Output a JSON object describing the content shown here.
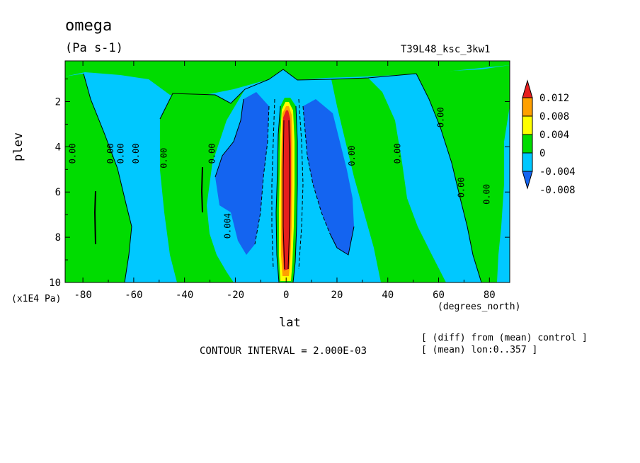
{
  "chart_data": {
    "type": "heatmap",
    "title": "omega",
    "units": "(Pa s-1)",
    "run_label": "T39L48_ksc_3kw1",
    "xlabel": "lat",
    "x_units": "(degrees_north)",
    "ylabel": "plev",
    "y_units": "(x1E4 Pa)",
    "x_ticks": [
      "-80",
      "-60",
      "-40",
      "-20",
      "0",
      "20",
      "40",
      "60",
      "80"
    ],
    "x_tick_values": [
      -80,
      -60,
      -40,
      -20,
      0,
      20,
      40,
      60,
      80
    ],
    "y_ticks": [
      "2",
      "4",
      "6",
      "8",
      "10"
    ],
    "y_tick_values": [
      2,
      4,
      6,
      8,
      10
    ],
    "xlim": [
      -87,
      88
    ],
    "ylim": [
      10,
      0.2
    ],
    "legend": {
      "labels": [
        "0.012",
        "0.008",
        "0.004",
        "0",
        "-0.004",
        "-0.008"
      ],
      "colors": [
        "#1464f0",
        "#00c8ff",
        "#00dc00",
        "#ffff00",
        "#ffa000",
        "#e61e1e"
      ]
    },
    "contour_labels": [
      {
        "text": "0.00",
        "x": -83,
        "y": 4.3
      },
      {
        "text": "0.00",
        "x": -68,
        "y": 4.3
      },
      {
        "text": "0.00",
        "x": -64,
        "y": 4.3
      },
      {
        "text": "0.00",
        "x": -58,
        "y": 4.3
      },
      {
        "text": "0.00",
        "x": -47,
        "y": 4.5
      },
      {
        "text": "0.00",
        "x": -28,
        "y": 4.3
      },
      {
        "text": "0.004",
        "x": -22,
        "y": 7.5
      },
      {
        "text": "0.00",
        "x": 27,
        "y": 4.4
      },
      {
        "text": "0.00",
        "x": 45,
        "y": 4.3
      },
      {
        "text": "0.00",
        "x": 62,
        "y": 2.7
      },
      {
        "text": "0.00",
        "x": 70,
        "y": 5.8
      },
      {
        "text": "0.00",
        "x": 80,
        "y": 6.1
      }
    ],
    "contour_interval_text": "CONTOUR INTERVAL = 2.000E-03",
    "notes": [
      "[ (diff) from (mean) control ]",
      "[ (mean) lon:0..357 ]"
    ]
  }
}
